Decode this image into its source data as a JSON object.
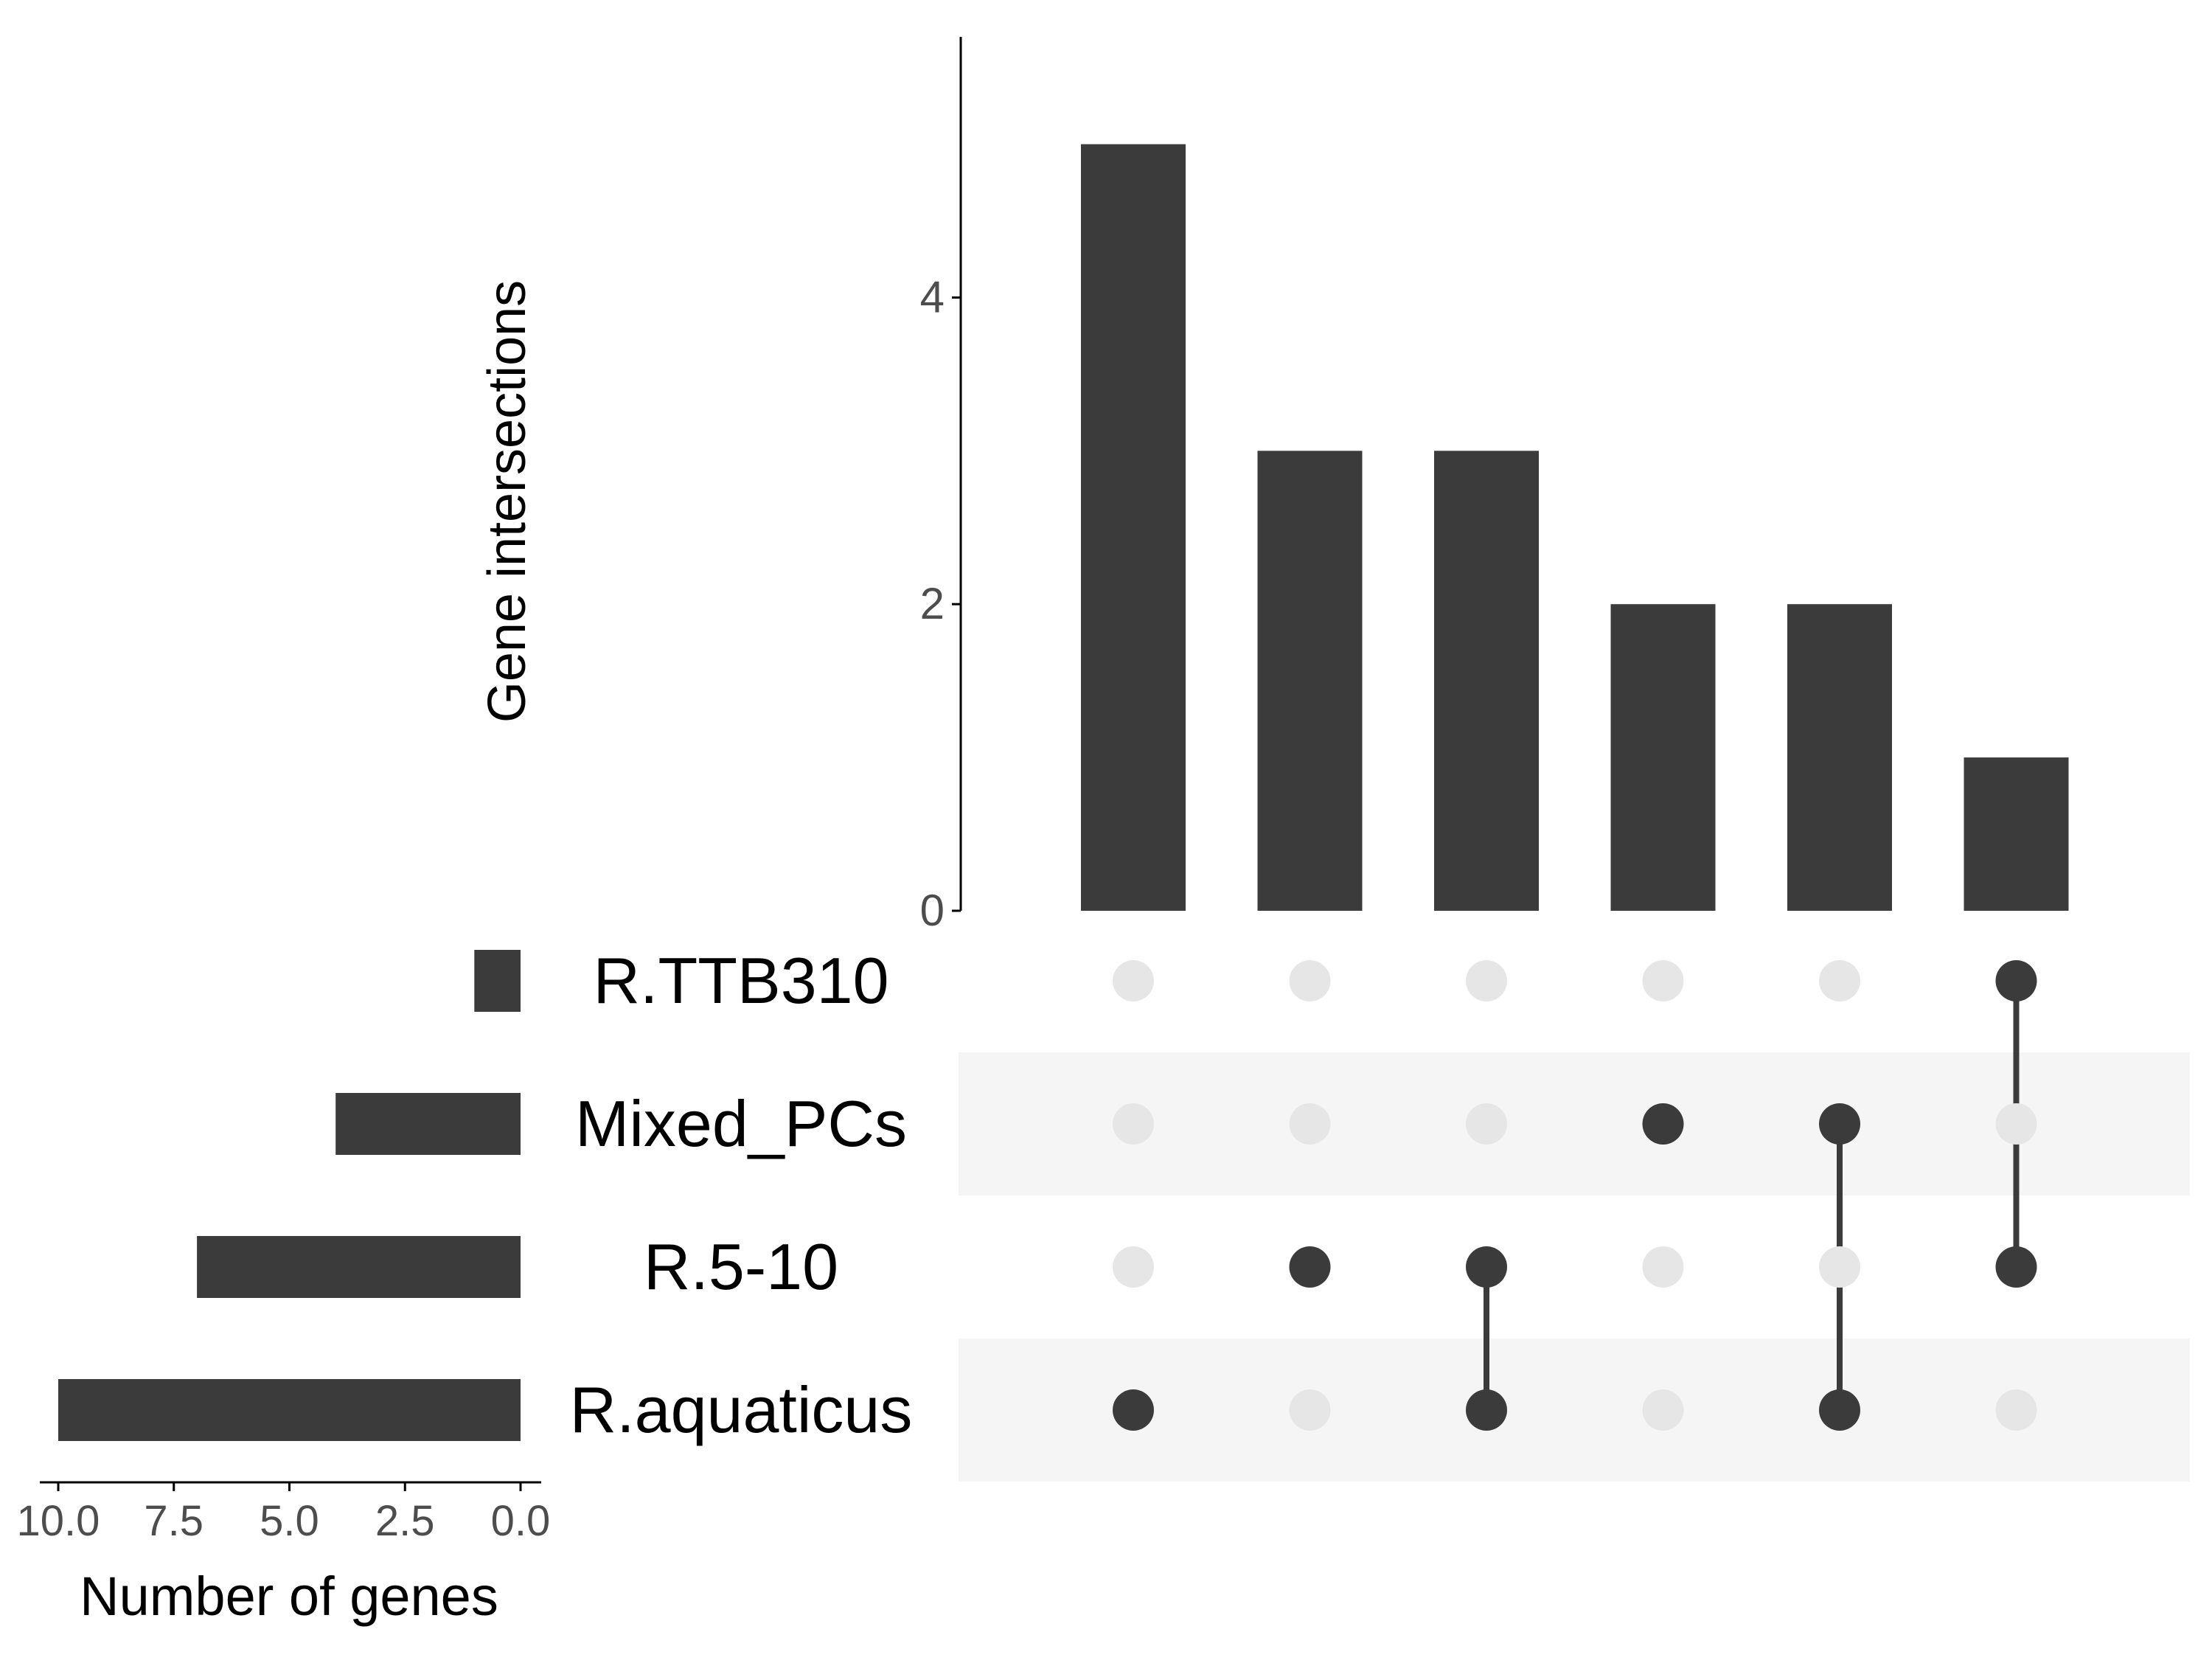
{
  "chart_data": {
    "type": "upset",
    "intersection_size": {
      "ylabel": "Gene intersections",
      "ylim": [
        0,
        5.7
      ],
      "yticks": [
        0,
        2,
        4
      ],
      "values": [
        5,
        3,
        3,
        2,
        2,
        1
      ]
    },
    "sets": [
      {
        "name": "R.TTB310",
        "size": 1
      },
      {
        "name": "Mixed_PCs",
        "size": 4
      },
      {
        "name": "R.5-10",
        "size": 7
      },
      {
        "name": "R.aquaticus",
        "size": 10
      }
    ],
    "set_size_axis": {
      "xlabel": "Number of genes",
      "xlim": [
        10.4,
        0
      ],
      "xticks": [
        10.0,
        7.5,
        5.0,
        2.5,
        0.0
      ],
      "tick_labels": [
        "10.0",
        "7.5",
        "5.0",
        "2.5",
        "0.0"
      ]
    },
    "matrix": [
      [
        "R.aquaticus"
      ],
      [
        "R.5-10"
      ],
      [
        "R.5-10",
        "R.aquaticus"
      ],
      [
        "Mixed_PCs"
      ],
      [
        "Mixed_PCs",
        "R.aquaticus"
      ],
      [
        "R.TTB310",
        "R.5-10"
      ]
    ],
    "grid": false,
    "colors": {
      "bar": "#3b3b3b",
      "dot_active": "#3b3b3b",
      "dot_inactive": "#e6e6e6",
      "row_stripe": "#f5f5f5",
      "axis": "#000000",
      "tick_label": "#4d4d4d"
    }
  }
}
